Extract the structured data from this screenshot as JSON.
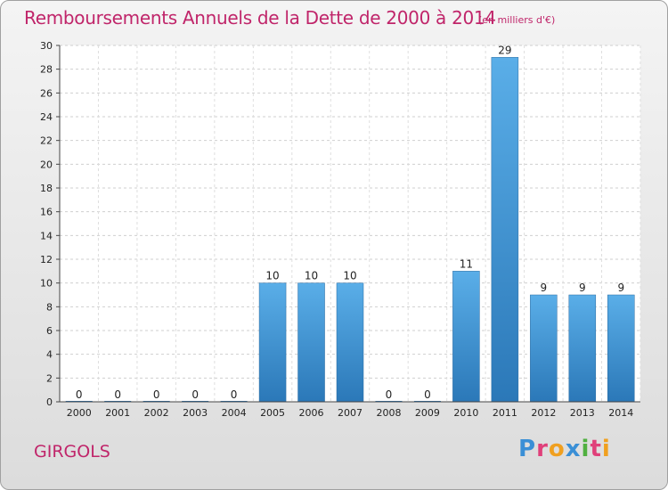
{
  "chart_data": {
    "type": "bar",
    "title": "Remboursements Annuels de la Dette de 2000 à 2014",
    "unit_note": "(en milliers d'€)",
    "categories": [
      "2000",
      "2001",
      "2002",
      "2003",
      "2004",
      "2005",
      "2006",
      "2007",
      "2008",
      "2009",
      "2010",
      "2011",
      "2012",
      "2013",
      "2014"
    ],
    "values": [
      0,
      0,
      0,
      0,
      0,
      10,
      10,
      10,
      0,
      0,
      11,
      29,
      9,
      9,
      9
    ],
    "ylim": [
      0,
      30
    ],
    "yticks": [
      0,
      2,
      4,
      6,
      8,
      10,
      12,
      14,
      16,
      18,
      20,
      22,
      24,
      26,
      28,
      30
    ],
    "grid": true,
    "bar_color": "#4a9fdc"
  },
  "footer": {
    "place": "GIRGOLS",
    "logo_text": "Proxiti"
  }
}
